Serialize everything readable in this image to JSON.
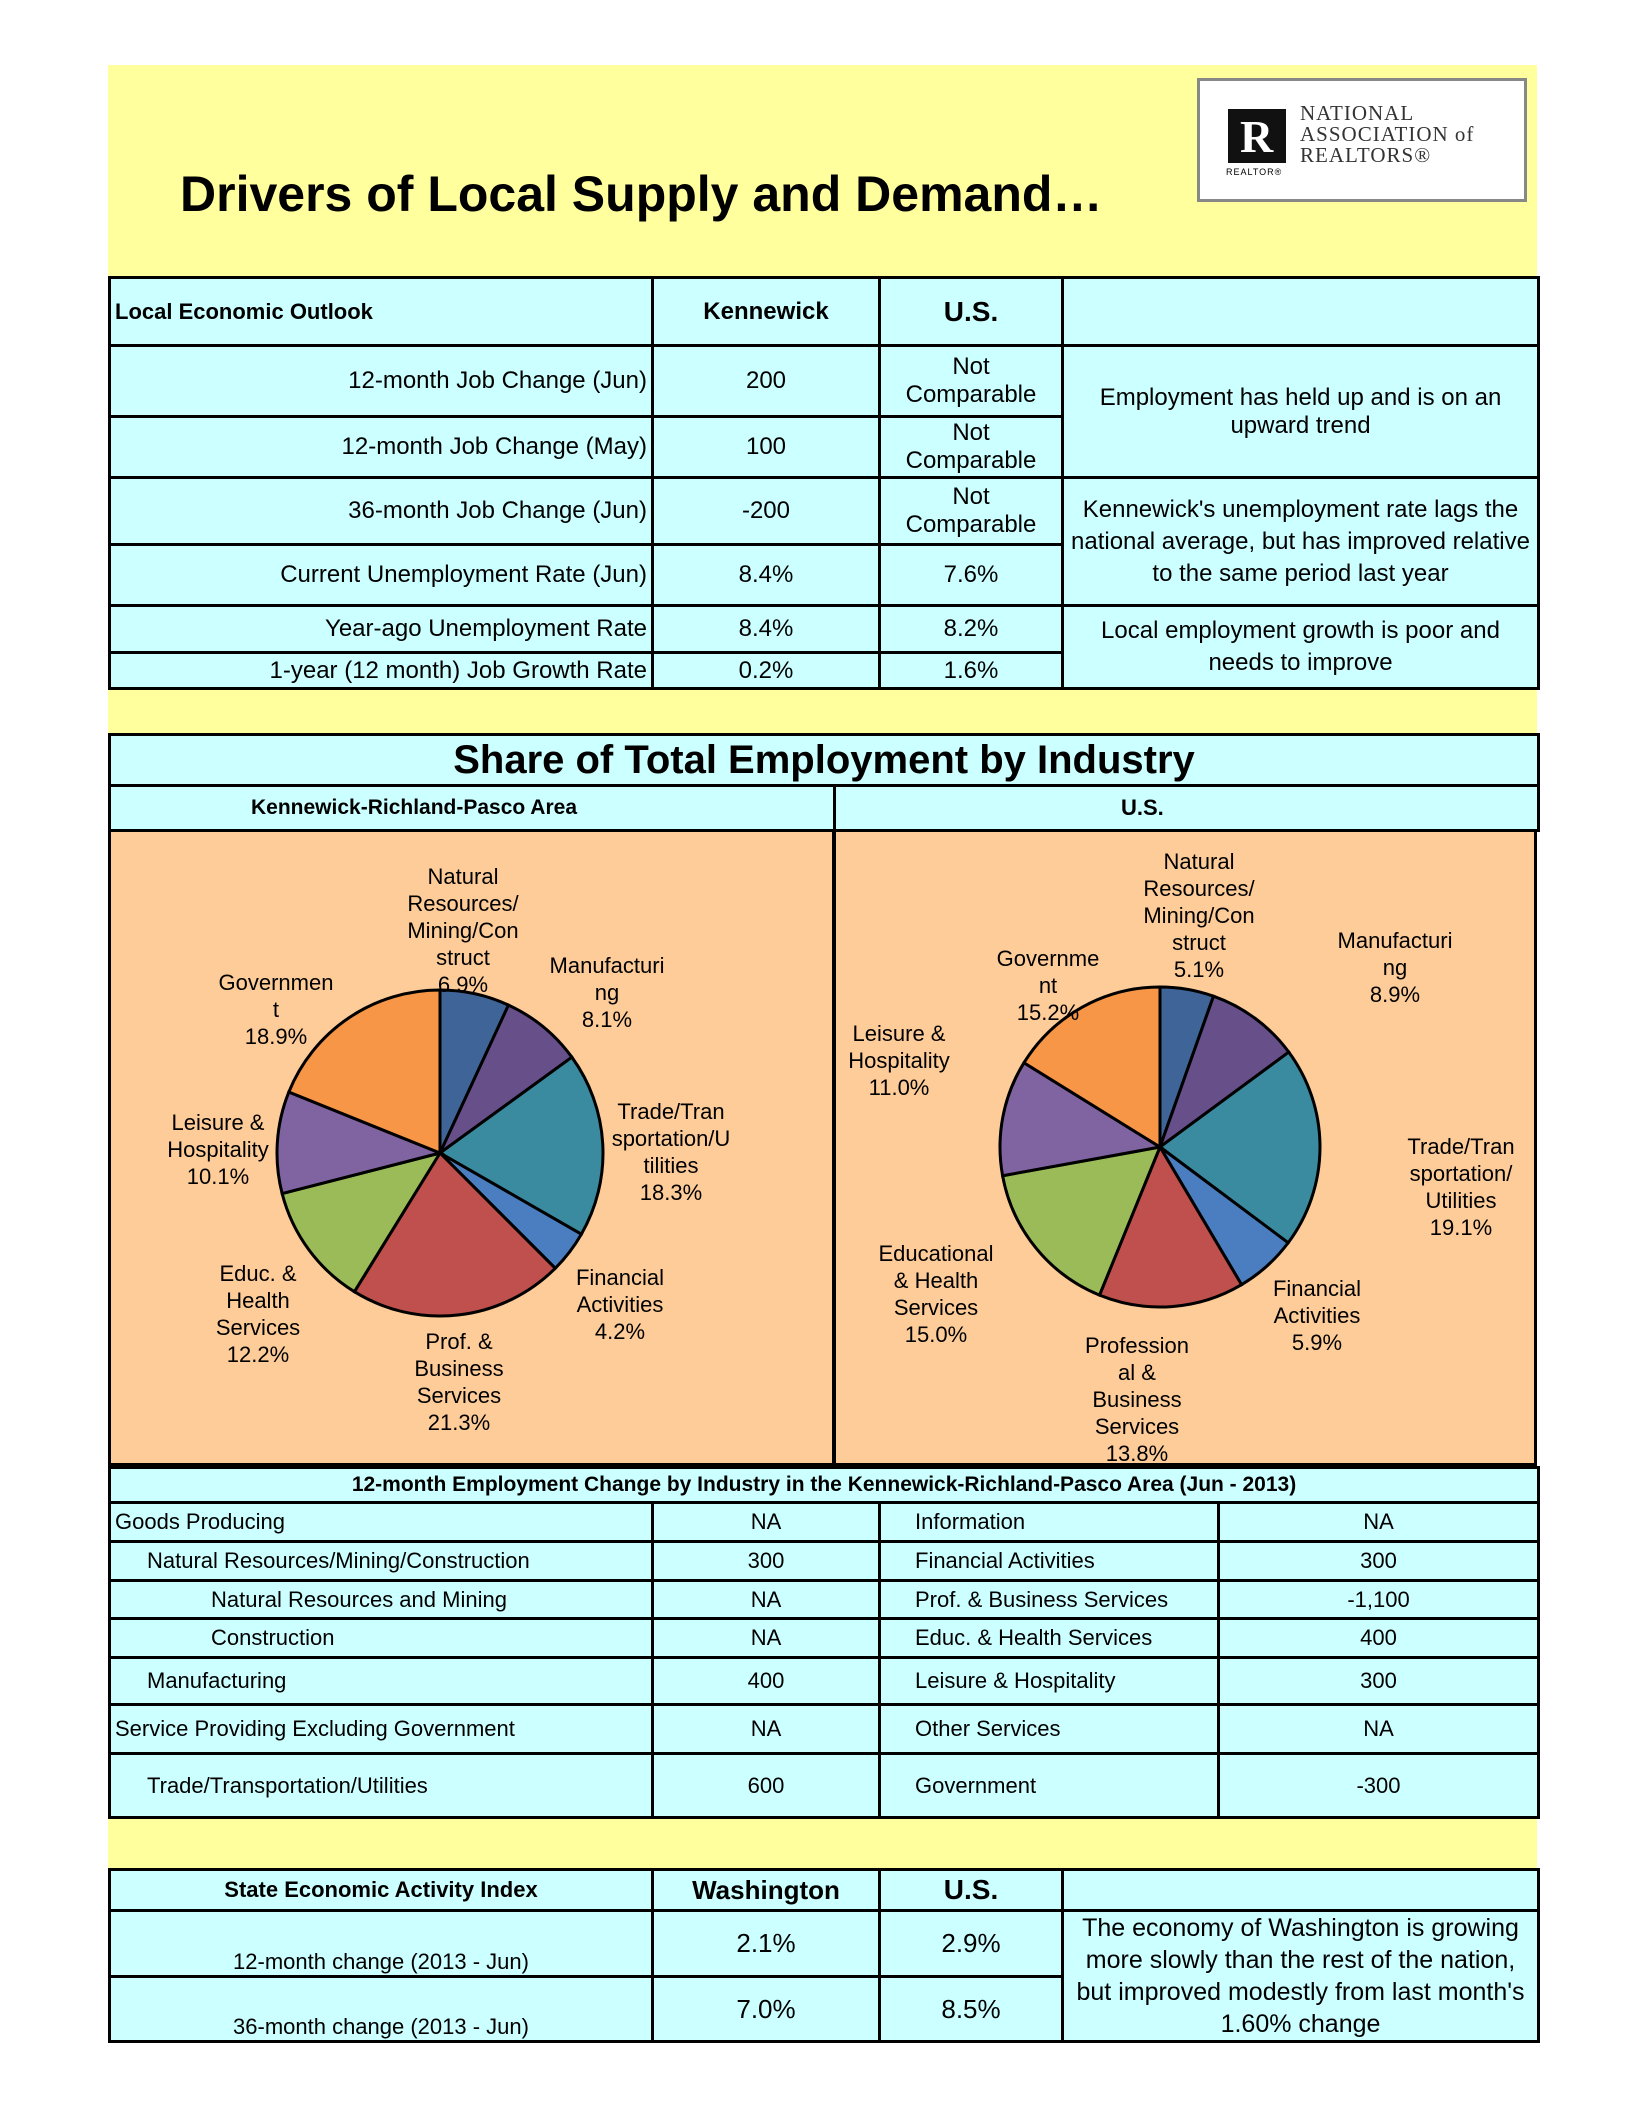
{
  "header": {
    "title": "Drivers of Local Supply and Demand…",
    "logo_text": [
      "NATIONAL",
      "ASSOCIATION of",
      "REALTORS®"
    ],
    "logo_mark": "R",
    "logo_sub": "REALTOR®"
  },
  "outlook": {
    "headers": [
      "Local Economic Outlook",
      "Kennewick",
      "U.S."
    ],
    "rows": [
      {
        "label": "12-month Job Change (Jun)",
        "local": "200",
        "us": "Not Comparable"
      },
      {
        "label": "12-month Job Change (May)",
        "local": "100",
        "us": "Not Comparable"
      },
      {
        "label": "36-month Job Change (Jun)",
        "local": "-200",
        "us": "Not Comparable"
      },
      {
        "label": "Current Unemployment Rate (Jun)",
        "local": "8.4%",
        "us": "7.6%"
      },
      {
        "label": "Year-ago Unemployment Rate",
        "local": "8.4%",
        "us": "8.2%"
      },
      {
        "label": "1-year (12 month) Job Growth Rate",
        "local": "0.2%",
        "us": "1.6%"
      }
    ],
    "comments": [
      "Employment has held up and is on an upward trend",
      "Kennewick's unemployment rate lags the national average, but has improved relative to the same period last year",
      "Local employment growth is poor and needs to improve"
    ]
  },
  "share": {
    "title": "Share of Total Employment by Industry",
    "left_title": "Kennewick-Richland-Pasco  Area",
    "right_title": "U.S."
  },
  "chart_data": [
    {
      "type": "pie",
      "title": "Kennewick-Richland-Pasco Area",
      "slices": [
        {
          "label": [
            "Natural",
            "Resources/",
            "Mining/Con",
            "struct"
          ],
          "value": 6.9,
          "text": "6.9%",
          "color": "#3f6598"
        },
        {
          "label": [
            "Manufacturi",
            "ng"
          ],
          "value": 8.1,
          "text": "8.1%",
          "color": "#674f8a"
        },
        {
          "label": [
            "Trade/Tran",
            "sportation/U",
            "tilities"
          ],
          "value": 18.3,
          "text": "18.3%",
          "color": "#3a8aa0"
        },
        {
          "label": [
            "Financial",
            "Activities"
          ],
          "value": 4.2,
          "text": "4.2%",
          "color": "#4a7ec0"
        },
        {
          "label": [
            "Prof. &",
            "Business",
            "Services"
          ],
          "value": 21.3,
          "text": "21.3%",
          "color": "#c0504d"
        },
        {
          "label": [
            "Educ. &",
            "Health",
            "Services"
          ],
          "value": 12.2,
          "text": "12.2%",
          "color": "#9bbb59"
        },
        {
          "label": [
            "Leisure &",
            "Hospitality"
          ],
          "value": 10.1,
          "text": "10.1%",
          "color": "#8064a2"
        },
        {
          "label": [
            "Governmen",
            "t"
          ],
          "value": 18.9,
          "text": "18.9%",
          "color": "#f79646"
        }
      ]
    },
    {
      "type": "pie",
      "title": "U.S.",
      "slices": [
        {
          "label": [
            "Natural",
            "Resources/",
            "Mining/Con",
            "struct"
          ],
          "value": 5.1,
          "text": "5.1%",
          "color": "#3f6598"
        },
        {
          "label": [
            "Manufacturi",
            "ng"
          ],
          "value": 8.9,
          "text": "8.9%",
          "color": "#674f8a"
        },
        {
          "label": [
            "Trade/Tran",
            "sportation/",
            "Utilities"
          ],
          "value": 19.1,
          "text": "19.1%",
          "color": "#3a8aa0"
        },
        {
          "label": [
            "Financial",
            "Activities"
          ],
          "value": 5.9,
          "text": "5.9%",
          "color": "#4a7ec0"
        },
        {
          "label": [
            "Profession",
            "al &",
            "Business",
            "Services"
          ],
          "value": 13.8,
          "text": "13.8%",
          "color": "#c0504d"
        },
        {
          "label": [
            "Educational",
            "& Health",
            "Services"
          ],
          "value": 15.0,
          "text": "15.0%",
          "color": "#9bbb59"
        },
        {
          "label": [
            "Leisure &",
            "Hospitality"
          ],
          "value": 11.0,
          "text": "11.0%",
          "color": "#8064a2"
        },
        {
          "label": [
            "Governme",
            "nt"
          ],
          "value": 15.2,
          "text": "15.2%",
          "color": "#f79646"
        }
      ]
    }
  ],
  "change": {
    "title": "12-month Employment Change by Industry in the Kennewick-Richland-Pasco  Area (Jun - 2013)",
    "rows": [
      {
        "l": "Goods Producing",
        "lv": "NA",
        "r": "Information",
        "rv": "NA"
      },
      {
        "l": "Natural Resources/Mining/Construction",
        "lv": "300",
        "r": "Financial Activities",
        "rv": "300"
      },
      {
        "l": "Natural Resources and Mining",
        "lv": "NA",
        "r": "Prof. & Business Services",
        "rv": "-1,100"
      },
      {
        "l": "Construction",
        "lv": "NA",
        "r": "Educ. & Health Services",
        "rv": "400"
      },
      {
        "l": "Manufacturing",
        "lv": "400",
        "r": "Leisure & Hospitality",
        "rv": "300"
      },
      {
        "l": "Service Providing Excluding Government",
        "lv": "NA",
        "r": "Other Services",
        "rv": "NA"
      },
      {
        "l": "Trade/Transportation/Utilities",
        "lv": "600",
        "r": "Government",
        "rv": "-300"
      }
    ]
  },
  "state": {
    "headers": [
      "State Economic Activity Index",
      "Washington",
      "U.S."
    ],
    "rows": [
      {
        "label": "12-month change (2013 - Jun)",
        "local": "2.1%",
        "us": "2.9%"
      },
      {
        "label": "36-month change (2013 - Jun)",
        "local": "7.0%",
        "us": "8.5%"
      }
    ],
    "comment": "The economy of Washington is growing more slowly than the rest of the nation, but improved modestly from last month's 1.60% change"
  }
}
